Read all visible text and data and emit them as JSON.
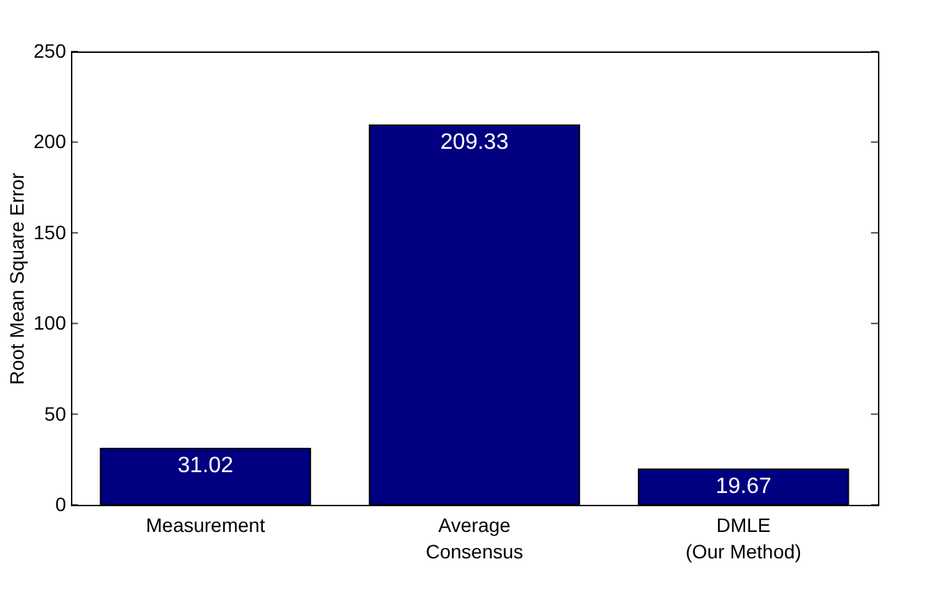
{
  "chart_data": {
    "type": "bar",
    "ylabel": "Root Mean Square Error",
    "categories": [
      "Measurement",
      "Average\nConsensus",
      "DMLE\n(Our Method)"
    ],
    "values": [
      31.02,
      209.33,
      19.67
    ],
    "color": "#000080",
    "ylim": [
      0,
      250
    ],
    "yticks": [
      0,
      50,
      100,
      150,
      200,
      250
    ],
    "data_labels": true
  }
}
